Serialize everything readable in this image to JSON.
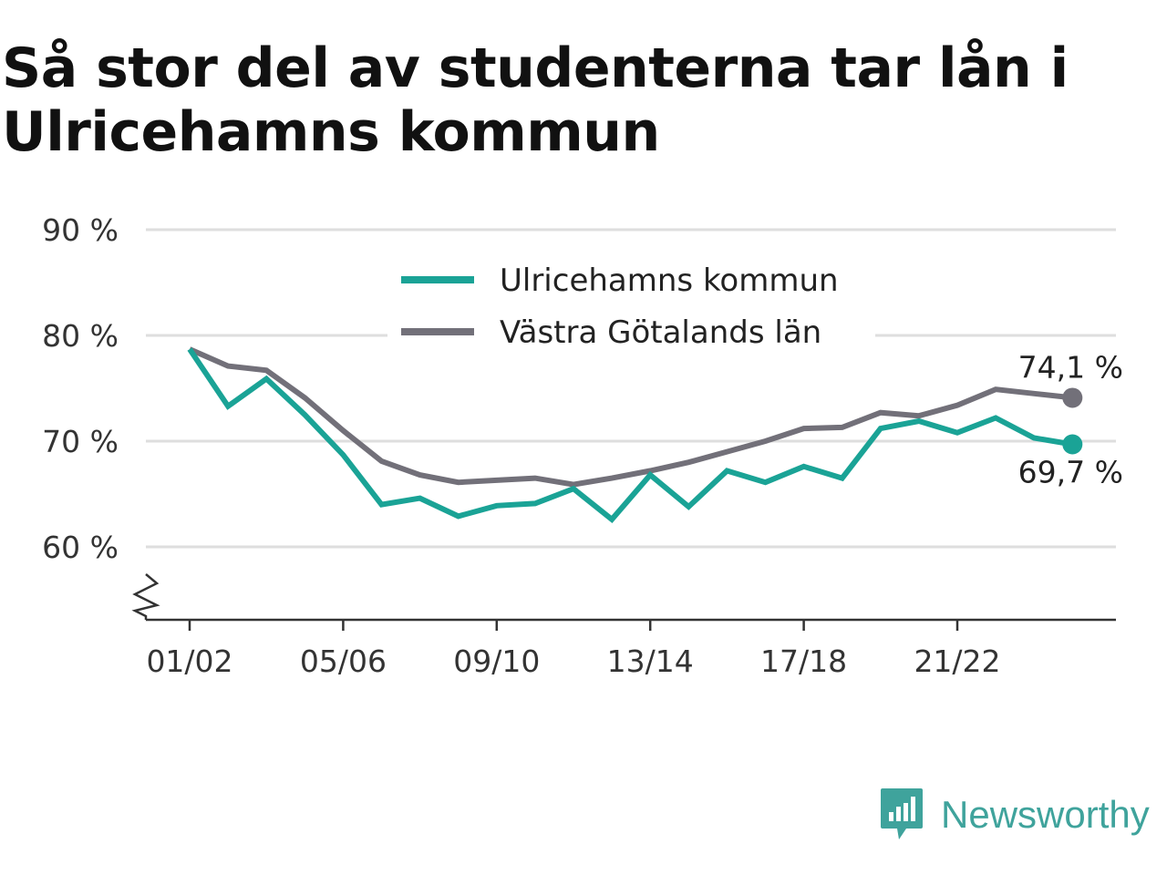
{
  "title": "Så stor del av studenterna tar lån i Ulricehamns kommun",
  "brand": {
    "name": "Newsworthy"
  },
  "colors": {
    "series1": "#1aa396",
    "series2": "#727079",
    "grid": "#dedede",
    "axis": "#333333"
  },
  "chart_data": {
    "type": "line",
    "title": "Så stor del av studenterna tar lån i Ulricehamns kommun",
    "xlabel": "",
    "ylabel": "",
    "ylim": [
      53,
      90
    ],
    "y_ticks": [
      60,
      70,
      80,
      90
    ],
    "y_tick_labels": [
      "60 %",
      "70 %",
      "80 %",
      "90 %"
    ],
    "y_axis_break": true,
    "grid": true,
    "legend_position": "top-center",
    "categories": [
      "01/02",
      "02/03",
      "03/04",
      "04/05",
      "05/06",
      "06/07",
      "07/08",
      "08/09",
      "09/10",
      "10/11",
      "11/12",
      "12/13",
      "13/14",
      "14/15",
      "15/16",
      "16/17",
      "17/18",
      "18/19",
      "19/20",
      "20/21",
      "21/22",
      "22/23",
      "23/24",
      "24/25"
    ],
    "x_tick_labels": [
      "01/02",
      "05/06",
      "09/10",
      "13/14",
      "17/18",
      "21/22"
    ],
    "series": [
      {
        "name": "Ulricehamns kommun",
        "color": "#1aa396",
        "values": [
          78.7,
          73.3,
          75.9,
          72.5,
          68.7,
          64.0,
          64.6,
          62.9,
          63.9,
          64.1,
          65.5,
          62.6,
          66.8,
          63.8,
          67.2,
          66.1,
          67.6,
          66.5,
          71.2,
          71.9,
          70.8,
          72.2,
          70.3,
          69.7
        ],
        "end_label": "69,7 %"
      },
      {
        "name": "Västra Götalands län",
        "color": "#727079",
        "values": [
          78.7,
          77.1,
          76.7,
          74.1,
          71.0,
          68.1,
          66.8,
          66.1,
          66.3,
          66.5,
          65.9,
          66.5,
          67.2,
          68.0,
          69.0,
          70.0,
          71.2,
          71.3,
          72.7,
          72.4,
          73.4,
          74.9,
          74.5,
          74.1
        ],
        "end_label": "74,1 %"
      }
    ]
  }
}
